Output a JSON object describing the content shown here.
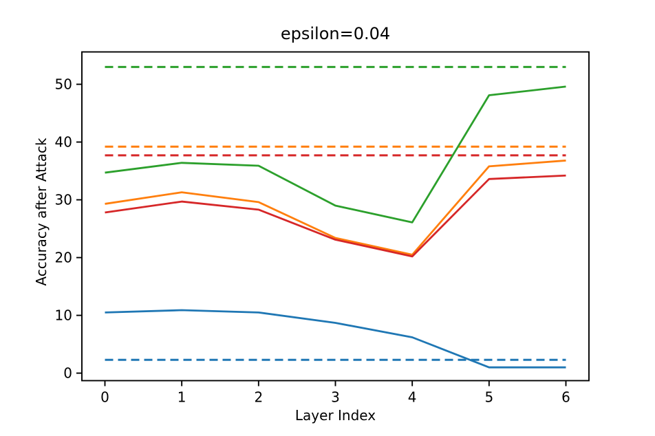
{
  "chart_data": {
    "type": "line",
    "title": "epsilon=0.04",
    "xlabel": "Layer Index",
    "ylabel": "Accuracy after Attack",
    "grid": false,
    "legend": "none",
    "x": [
      0,
      1,
      2,
      3,
      4,
      5,
      6
    ],
    "x_ticks": [
      "0",
      "1",
      "2",
      "3",
      "4",
      "5",
      "6"
    ],
    "y_ticks": [
      "0",
      "10",
      "20",
      "30",
      "40",
      "50"
    ],
    "y_tick_values": [
      0,
      10,
      20,
      30,
      40,
      50
    ],
    "xlim": [
      -0.3,
      6.3
    ],
    "ylim": [
      -1.3,
      55.6
    ],
    "series": [
      {
        "name": "blue-solid",
        "style": "solid",
        "color": "#1f77b4",
        "values": [
          10.5,
          10.9,
          10.5,
          8.7,
          6.2,
          1.0,
          1.0
        ]
      },
      {
        "name": "orange-solid",
        "style": "solid",
        "color": "#ff7f0e",
        "values": [
          29.3,
          31.3,
          29.6,
          23.4,
          20.5,
          35.8,
          36.8
        ]
      },
      {
        "name": "green-solid",
        "style": "solid",
        "color": "#2ca02c",
        "values": [
          34.7,
          36.4,
          35.9,
          29.0,
          26.1,
          48.1,
          49.6
        ]
      },
      {
        "name": "red-solid",
        "style": "solid",
        "color": "#d62728",
        "values": [
          27.8,
          29.7,
          28.3,
          23.1,
          20.2,
          33.6,
          34.2
        ]
      }
    ],
    "baselines": [
      {
        "name": "blue-dashed",
        "style": "dashed",
        "color": "#1f77b4",
        "value": 2.3
      },
      {
        "name": "red-dashed",
        "style": "dashed",
        "color": "#d62728",
        "value": 37.7
      },
      {
        "name": "orange-dashed",
        "style": "dashed",
        "color": "#ff7f0e",
        "value": 39.2
      },
      {
        "name": "green-dashed",
        "style": "dashed",
        "color": "#2ca02c",
        "value": 53.0
      }
    ],
    "colors": {
      "blue": "#1f77b4",
      "orange": "#ff7f0e",
      "green": "#2ca02c",
      "red": "#d62728",
      "axes": "#000000",
      "background": "#ffffff"
    }
  }
}
